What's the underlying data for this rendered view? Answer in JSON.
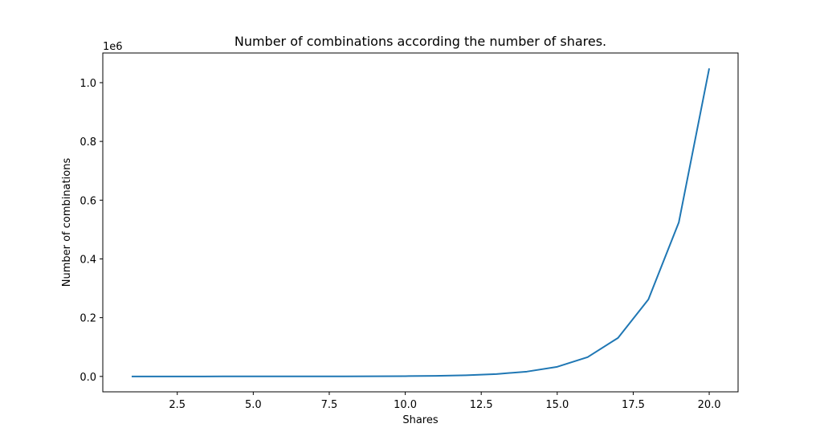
{
  "chart_data": {
    "type": "line",
    "title": "Number of combinations according the number of shares.",
    "xlabel": "Shares",
    "ylabel": "Number of combinations",
    "y_offset_label": "1e6",
    "xlim": [
      0.05,
      20.95
    ],
    "ylim": [
      -52427,
      1101004
    ],
    "grid": false,
    "x_ticks": [
      2.5,
      5.0,
      7.5,
      10.0,
      12.5,
      15.0,
      17.5,
      20.0
    ],
    "x_tick_labels": [
      "2.5",
      "5.0",
      "7.5",
      "10.0",
      "12.5",
      "15.0",
      "17.5",
      "20.0"
    ],
    "y_ticks": [
      0,
      200000,
      400000,
      600000,
      800000,
      1000000
    ],
    "y_tick_labels": [
      "0.0",
      "0.2",
      "0.4",
      "0.6",
      "0.8",
      "1.0"
    ],
    "series": [
      {
        "color": "#1f77b4",
        "x": [
          1,
          2,
          3,
          4,
          5,
          6,
          7,
          8,
          9,
          10,
          11,
          12,
          13,
          14,
          15,
          16,
          17,
          18,
          19,
          20
        ],
        "y": [
          2,
          4,
          8,
          16,
          32,
          64,
          128,
          256,
          512,
          1024,
          2048,
          4096,
          8192,
          16384,
          32768,
          65536,
          131072,
          262144,
          524288,
          1048576
        ]
      }
    ]
  }
}
